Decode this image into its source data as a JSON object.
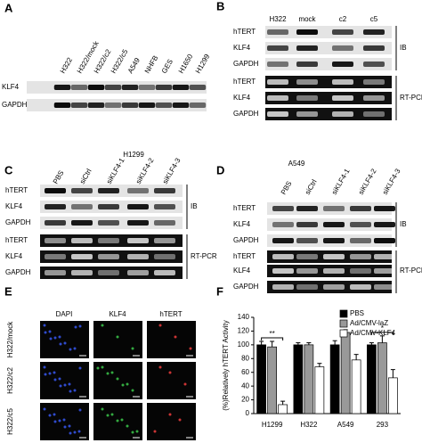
{
  "panels": [
    {
      "label": "A",
      "lanes": [
        "H322",
        "H322/mock",
        "H322/c2",
        "H322/c5",
        "A549",
        "NHFB",
        "GES",
        "H1650",
        "H1299"
      ],
      "rows": [
        "KLF4",
        "GAPDH"
      ]
    },
    {
      "label": "B",
      "lanes": [
        "H322",
        "mock",
        "c2",
        "c5"
      ],
      "rows": [
        "hTERT",
        "KLF4",
        "GAPDH",
        "hTERT",
        "KLF4",
        "GAPDH"
      ],
      "groups": [
        "IB",
        "RT-PCR"
      ]
    },
    {
      "label": "C",
      "title": "H1299",
      "lanes": [
        "PBS",
        "siCtrl",
        "siKLF4-1",
        "siKLF4-2",
        "siKLF4-3"
      ],
      "rows": [
        "hTERT",
        "KLF4",
        "GAPDH",
        "hTERT",
        "KLF4",
        "GAPDH"
      ],
      "groups": [
        "IB",
        "RT-PCR"
      ]
    },
    {
      "label": "D",
      "title": "A549",
      "lanes": [
        "PBS",
        "siCtrl",
        "siKLF4-1",
        "siKLF4-2",
        "siKLF4-3"
      ],
      "rows": [
        "hTERT",
        "KLF4",
        "GAPDH",
        "hTERT",
        "KLF4",
        "GAPDH"
      ],
      "groups": [
        "IB",
        "RT-PCR"
      ]
    },
    {
      "label": "E",
      "columns": [
        "DAPI",
        "KLF4",
        "hTERT"
      ],
      "rows": [
        "H322/mock",
        "H322/c2",
        "H322/c5"
      ]
    }
  ],
  "chart_data": {
    "type": "bar",
    "panel_label": "F",
    "ylabel": "(%)Relatively hTERT Activity",
    "categories": [
      "H1299",
      "H322",
      "A549",
      "293"
    ],
    "series": [
      {
        "name": "PBS",
        "color": "#000000",
        "values": [
          100,
          100,
          100,
          100
        ],
        "errors": [
          5,
          3,
          6,
          3
        ]
      },
      {
        "name": "Ad/CMV-laZ",
        "color": "#999999",
        "values": [
          97,
          100,
          118,
          103
        ],
        "errors": [
          8,
          3,
          4,
          10
        ]
      },
      {
        "name": "Ad/CMV-KLF4",
        "color": "#ffffff",
        "values": [
          13,
          68,
          78,
          52
        ],
        "errors": [
          5,
          5,
          8,
          12
        ]
      }
    ],
    "significance": [
      "**",
      null,
      null,
      "*"
    ],
    "ylim": [
      0,
      140
    ],
    "yticks": [
      0,
      20,
      40,
      60,
      80,
      100,
      120,
      140
    ]
  }
}
